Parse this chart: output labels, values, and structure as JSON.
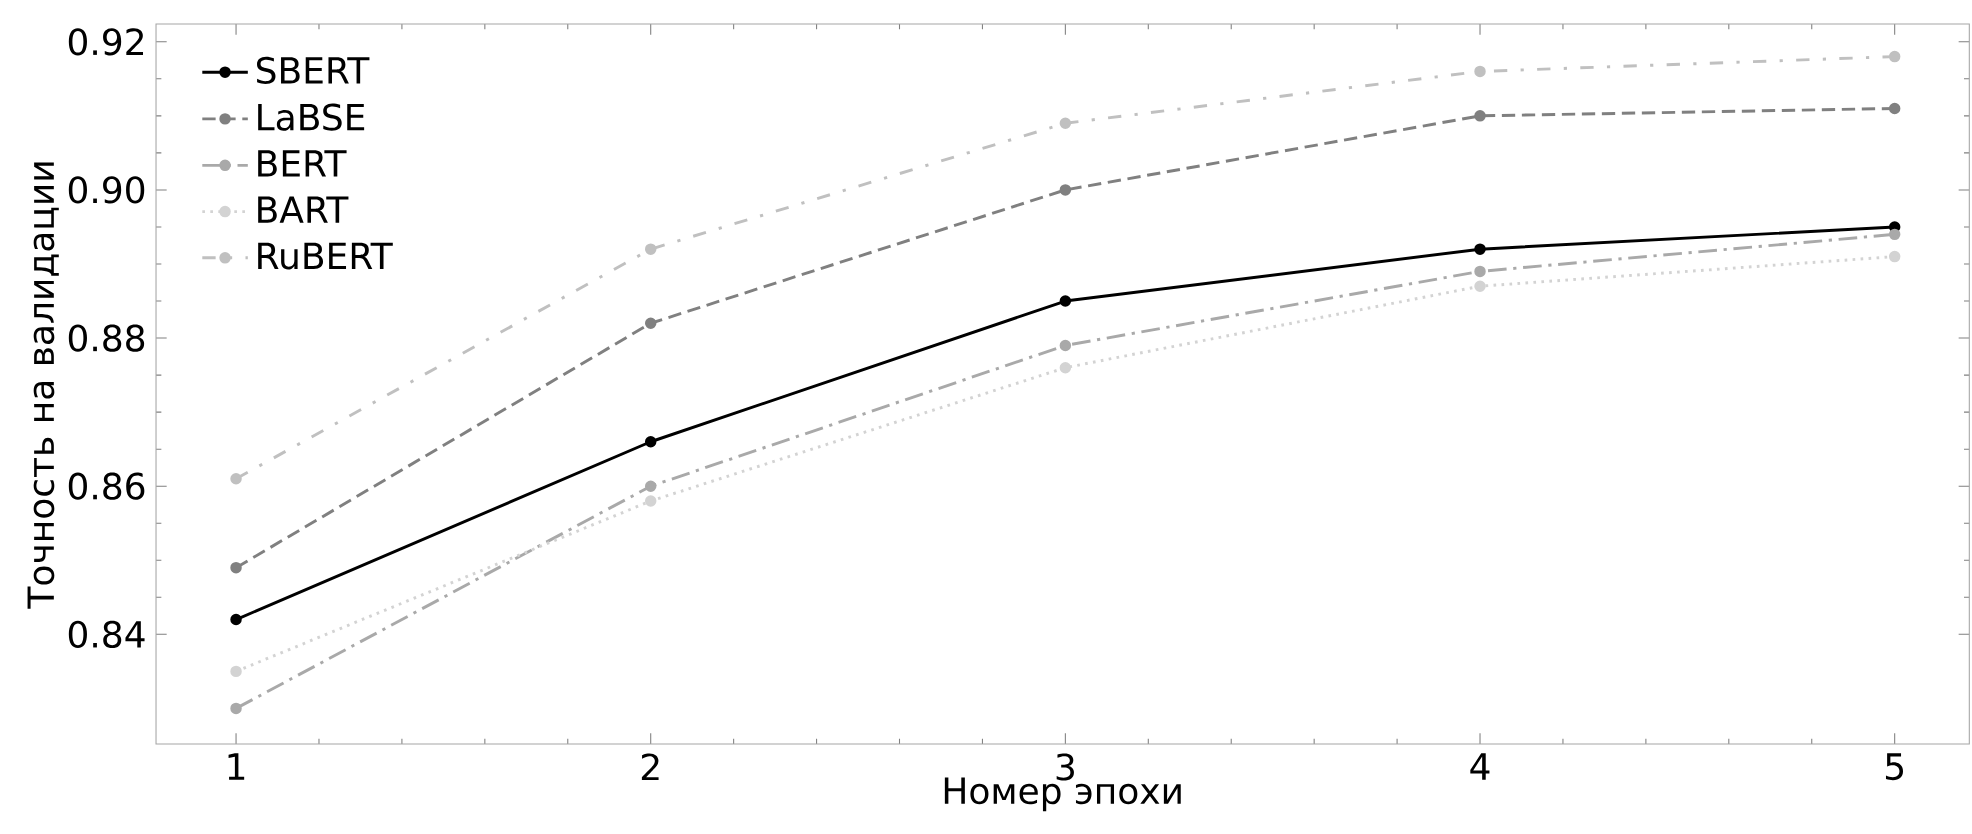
{
  "chart_data": {
    "type": "line",
    "xlabel": "Номер эпохи",
    "ylabel": "Точность на валидации",
    "x": [
      1,
      2,
      3,
      4,
      5
    ],
    "series": [
      {
        "name": "SBERT",
        "color": "#000000",
        "line_style": "solid",
        "values": [
          0.842,
          0.866,
          0.885,
          0.892,
          0.895
        ]
      },
      {
        "name": "LaBSE",
        "color": "#808080",
        "line_style": "dashed",
        "values": [
          0.849,
          0.882,
          0.9,
          0.91,
          0.911
        ]
      },
      {
        "name": "BERT",
        "color": "#a9a9a9",
        "line_style": "dashdot",
        "values": [
          0.83,
          0.86,
          0.879,
          0.889,
          0.894
        ]
      },
      {
        "name": "BART",
        "color": "#d3d3d3",
        "line_style": "dotted",
        "values": [
          0.835,
          0.858,
          0.876,
          0.887,
          0.891
        ]
      },
      {
        "name": "RuBERT",
        "color": "#c0c0c0",
        "line_style": "dashdotloose",
        "values": [
          0.861,
          0.892,
          0.909,
          0.916,
          0.918
        ]
      }
    ],
    "xlim": [
      0.807,
      5.18
    ],
    "ylim": [
      0.8252,
      0.9224
    ],
    "xticks": [
      1,
      2,
      3,
      4,
      5
    ],
    "yticks": [
      {
        "value": 0.84,
        "label": "0.84"
      },
      {
        "value": 0.86,
        "label": "0.86"
      },
      {
        "value": 0.88,
        "label": "0.88"
      },
      {
        "value": 0.9,
        "label": "0.90"
      },
      {
        "value": 0.92,
        "label": "0.92"
      }
    ],
    "grid": false,
    "legend": "top left",
    "marker": "circle"
  }
}
